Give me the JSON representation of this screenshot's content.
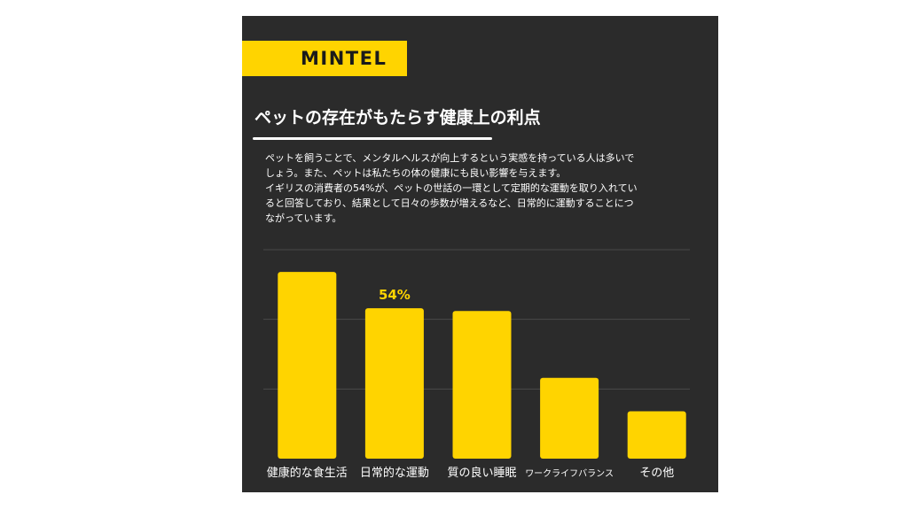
{
  "logo": "MINTEL",
  "title": "ペットの存在がもたらす健康上の利点",
  "body_lines": [
    "ペットを飼うことで、メンタルヘルスが向上するという実感を持っている人は多いで",
    "しょう。また、ペットは私たちの体の健康にも良い影響を与えます。",
    "イギリスの消費者の54%が、ペットの世話の一環として定期的な運動を取り入れてい",
    "ると回答しており、結果として日々の歩数が増えるなど、日常的に運動することにつ",
    "ながっています。"
  ],
  "colors": {
    "background": "#2b2b2b",
    "accent": "#ffd400",
    "text": "#ffffff",
    "grid": "#4a4a4a"
  },
  "chart_data": {
    "type": "bar",
    "categories": [
      "健康的な食生活",
      "日常的な運動",
      "質の良い睡眠",
      "ワークライフバランス",
      "その他"
    ],
    "values": [
      67,
      54,
      53,
      29,
      17
    ],
    "data_labels": [
      null,
      "54%",
      null,
      null,
      null
    ],
    "ylim": [
      0,
      75
    ],
    "grid": true,
    "gridlines": [
      25,
      50,
      75
    ]
  }
}
